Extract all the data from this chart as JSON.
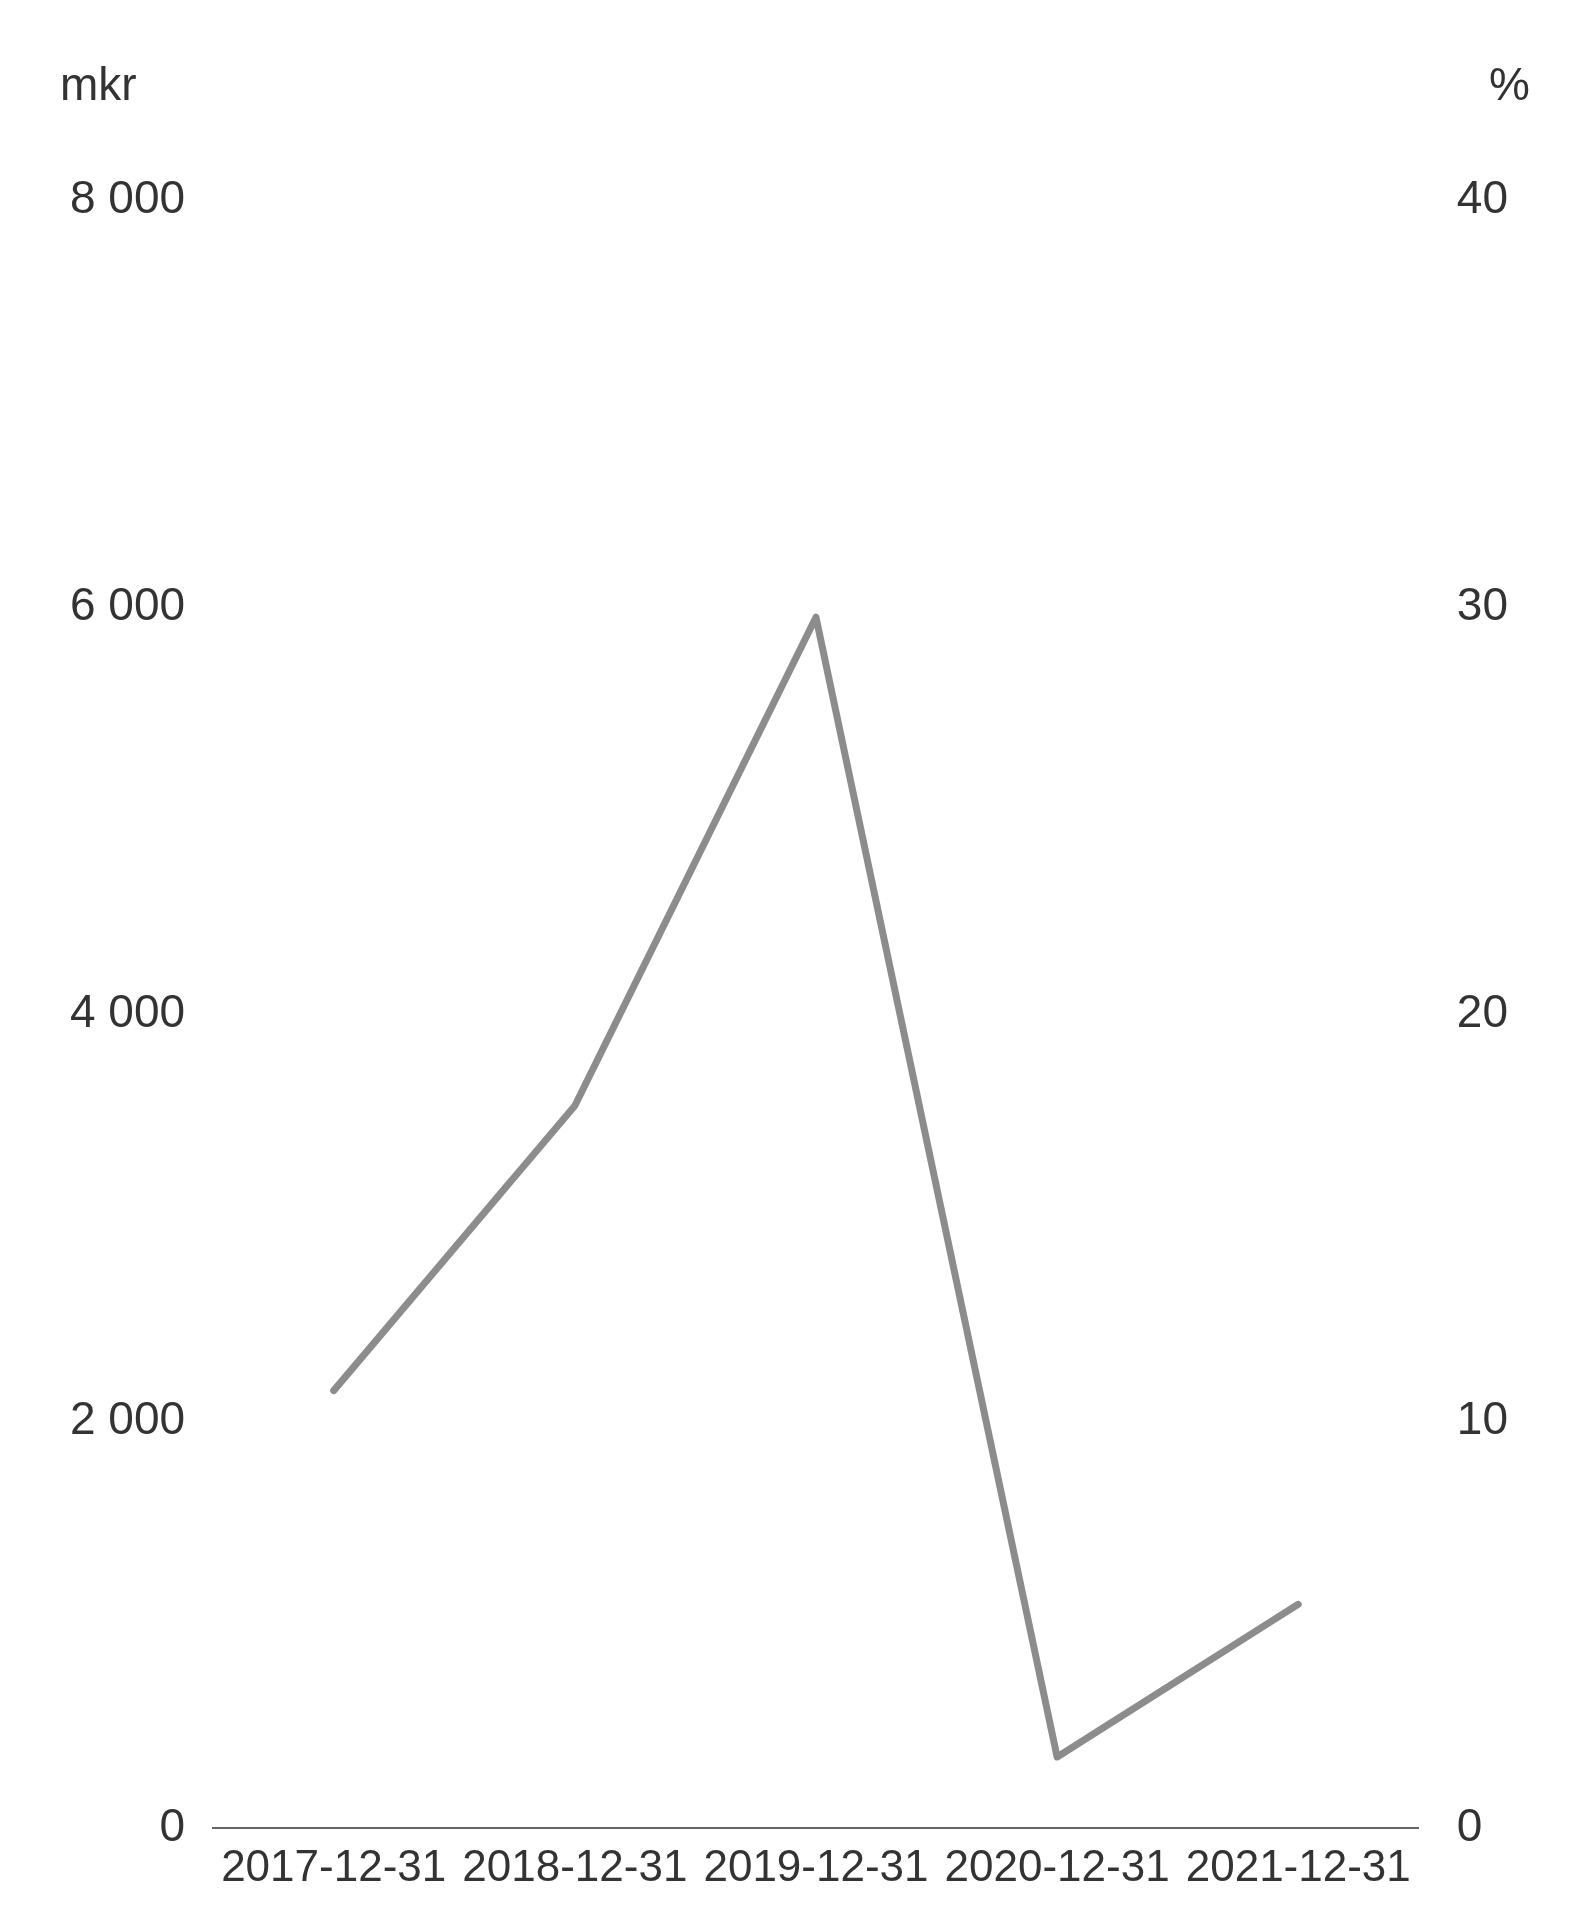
{
  "chart_data": {
    "type": "line",
    "ylabel": "mkr",
    "y2label": "%",
    "categories": [
      "2017-12-31",
      "2018-12-31",
      "2019-12-31",
      "2020-12-31",
      "2021-12-31"
    ],
    "series": [
      {
        "color": "#8c8c8c",
        "values": [
          2150,
          3550,
          5950,
          350,
          1100
        ]
      }
    ],
    "ylim": [
      0,
      8000
    ],
    "yticks": [
      {
        "value": 0,
        "label": "0"
      },
      {
        "value": 2000,
        "label": "2 000"
      },
      {
        "value": 4000,
        "label": "4 000"
      },
      {
        "value": 6000,
        "label": "6 000"
      },
      {
        "value": 8000,
        "label": "8 000"
      }
    ],
    "y2lim": [
      0,
      40
    ],
    "y2ticks": [
      0,
      10,
      20,
      30,
      40
    ],
    "grid": false,
    "legend": false,
    "marker": "none",
    "line_style": "solid"
  }
}
